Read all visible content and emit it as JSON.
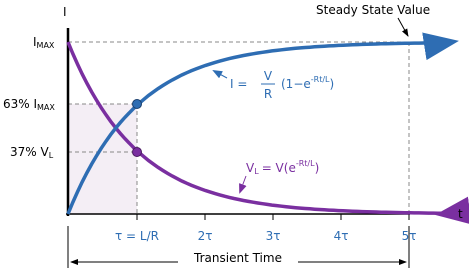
{
  "axes": {
    "y_label": "I",
    "x_label": "t"
  },
  "y_labels": [
    {
      "main": "I",
      "sub": "MAX"
    },
    {
      "main": "63% I",
      "sub": "MAX"
    },
    {
      "main": "37% V",
      "sub": "L"
    }
  ],
  "x_labels": [
    "τ = L/R",
    "2τ",
    "3τ",
    "4τ",
    "5τ"
  ],
  "annotations": {
    "steady_state": "Steady State Value",
    "transient": "Transient Time"
  },
  "current_equation": {
    "lhs": "I =",
    "numerator": "V",
    "denominator": "R",
    "open": "(1−e",
    "exponent": "-Rt/L",
    "close": ")"
  },
  "voltage_equation": {
    "lhs": "V",
    "lhs_sub": "L",
    "rest": "= V(e",
    "exponent": "-Rt/L",
    "close": ")"
  }
}
